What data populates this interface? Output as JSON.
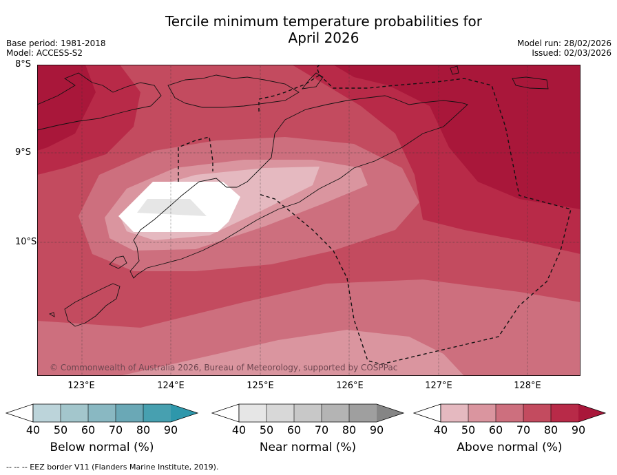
{
  "title_line1": "Tercile minimum temperature probabilities for",
  "title_line2": "April 2026",
  "base_period": "Base period: 1981-2018",
  "model": "Model: ACCESS-S2",
  "model_run": "Model run: 28/02/2026",
  "issued": "Issued: 02/03/2026",
  "lat_labels": [
    "8°S",
    "9°S",
    "10°S"
  ],
  "lon_labels": [
    "123°E",
    "124°E",
    "125°E",
    "126°E",
    "127°E",
    "128°E"
  ],
  "copyright": "© Commonwealth of Australia 2026, Bureau of Meteorology, supported by COSPPac",
  "colorbars": [
    {
      "title": "Below normal (%)",
      "ticks": [
        "40",
        "50",
        "60",
        "70",
        "80",
        "90"
      ],
      "colors": [
        "#bcd4da",
        "#a3c6cc",
        "#89b8c2",
        "#6aa8b6",
        "#47a0b0",
        "#2e97ab"
      ]
    },
    {
      "title": "Near normal (%)",
      "ticks": [
        "40",
        "50",
        "60",
        "70",
        "80",
        "90"
      ],
      "colors": [
        "#e6e6e6",
        "#d8d8d8",
        "#c8c8c8",
        "#b4b4b4",
        "#9f9f9f",
        "#858585"
      ]
    },
    {
      "title": "Above normal (%)",
      "ticks": [
        "40",
        "50",
        "60",
        "70",
        "80",
        "90"
      ],
      "colors": [
        "#e5b9c0",
        "#da959f",
        "#cd6f7e",
        "#c34b5f",
        "#b82a48",
        "#a9173a"
      ]
    }
  ],
  "footer": "--  --  -- EEZ border V11 (Flanders Marine Institute, 2019)."
}
